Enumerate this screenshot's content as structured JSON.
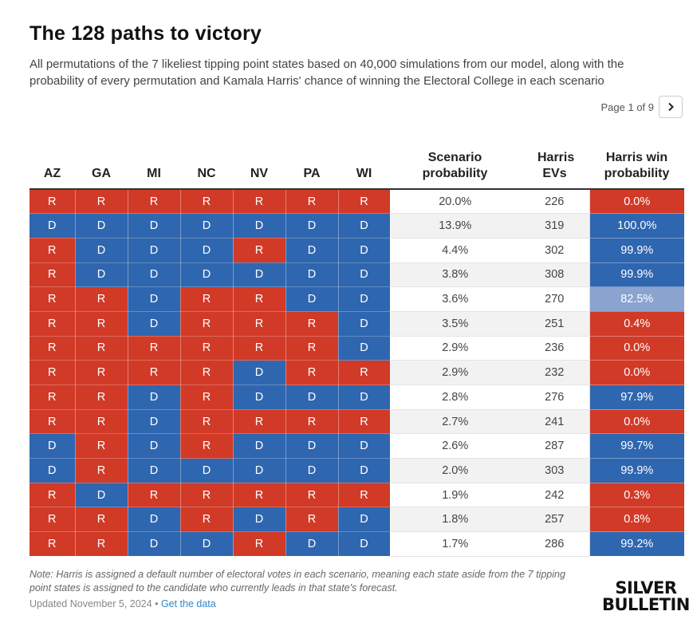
{
  "title": "The 128 paths to victory",
  "subtitle": "All permutations of the 7 likeliest tipping point states based on 40,000 simulations from our model, along with the probability of every permutation and Kamala Harris' chance of winning the Electoral College in each scenario",
  "pager": {
    "label": "Page 1 of 9",
    "next_icon": "chevron-right-icon"
  },
  "columns": {
    "states": [
      "AZ",
      "GA",
      "MI",
      "NC",
      "NV",
      "PA",
      "WI"
    ],
    "scenario_prob": "Scenario probability",
    "harris_evs": "Harris EVs",
    "win_prob": "Harris win probability"
  },
  "colors": {
    "R": "#d13a27",
    "D": "#2f66b0",
    "mid": "#8aa3cf"
  },
  "chart_data": {
    "type": "table",
    "title": "The 128 paths to victory",
    "columns": [
      "AZ",
      "GA",
      "MI",
      "NC",
      "NV",
      "PA",
      "WI",
      "Scenario probability",
      "Harris EVs",
      "Harris win probability"
    ],
    "rows": [
      {
        "states": [
          "R",
          "R",
          "R",
          "R",
          "R",
          "R",
          "R"
        ],
        "scenario": "20.0%",
        "evs": "226",
        "win": "0.0%",
        "win_value": 0.0
      },
      {
        "states": [
          "D",
          "D",
          "D",
          "D",
          "D",
          "D",
          "D"
        ],
        "scenario": "13.9%",
        "evs": "319",
        "win": "100.0%",
        "win_value": 100.0
      },
      {
        "states": [
          "R",
          "D",
          "D",
          "D",
          "R",
          "D",
          "D"
        ],
        "scenario": "4.4%",
        "evs": "302",
        "win": "99.9%",
        "win_value": 99.9
      },
      {
        "states": [
          "R",
          "D",
          "D",
          "D",
          "D",
          "D",
          "D"
        ],
        "scenario": "3.8%",
        "evs": "308",
        "win": "99.9%",
        "win_value": 99.9
      },
      {
        "states": [
          "R",
          "R",
          "D",
          "R",
          "R",
          "D",
          "D"
        ],
        "scenario": "3.6%",
        "evs": "270",
        "win": "82.5%",
        "win_value": 82.5
      },
      {
        "states": [
          "R",
          "R",
          "D",
          "R",
          "R",
          "R",
          "D"
        ],
        "scenario": "3.5%",
        "evs": "251",
        "win": "0.4%",
        "win_value": 0.4
      },
      {
        "states": [
          "R",
          "R",
          "R",
          "R",
          "R",
          "R",
          "D"
        ],
        "scenario": "2.9%",
        "evs": "236",
        "win": "0.0%",
        "win_value": 0.0
      },
      {
        "states": [
          "R",
          "R",
          "R",
          "R",
          "D",
          "R",
          "R"
        ],
        "scenario": "2.9%",
        "evs": "232",
        "win": "0.0%",
        "win_value": 0.0
      },
      {
        "states": [
          "R",
          "R",
          "D",
          "R",
          "D",
          "D",
          "D"
        ],
        "scenario": "2.8%",
        "evs": "276",
        "win": "97.9%",
        "win_value": 97.9
      },
      {
        "states": [
          "R",
          "R",
          "D",
          "R",
          "R",
          "R",
          "R"
        ],
        "scenario": "2.7%",
        "evs": "241",
        "win": "0.0%",
        "win_value": 0.0
      },
      {
        "states": [
          "D",
          "R",
          "D",
          "R",
          "D",
          "D",
          "D"
        ],
        "scenario": "2.6%",
        "evs": "287",
        "win": "99.7%",
        "win_value": 99.7
      },
      {
        "states": [
          "D",
          "R",
          "D",
          "D",
          "D",
          "D",
          "D"
        ],
        "scenario": "2.0%",
        "evs": "303",
        "win": "99.9%",
        "win_value": 99.9
      },
      {
        "states": [
          "R",
          "D",
          "R",
          "R",
          "R",
          "R",
          "R"
        ],
        "scenario": "1.9%",
        "evs": "242",
        "win": "0.3%",
        "win_value": 0.3
      },
      {
        "states": [
          "R",
          "R",
          "D",
          "R",
          "D",
          "R",
          "D"
        ],
        "scenario": "1.8%",
        "evs": "257",
        "win": "0.8%",
        "win_value": 0.8
      },
      {
        "states": [
          "R",
          "R",
          "D",
          "D",
          "R",
          "D",
          "D"
        ],
        "scenario": "1.7%",
        "evs": "286",
        "win": "99.2%",
        "win_value": 99.2
      }
    ]
  },
  "footer": {
    "note": "Note: Harris is assigned a default number of electoral votes in each scenario, meaning each state aside from the 7 tipping point states is assigned to the candidate who currently leads in that state's forecast.",
    "updated": "Updated November 5, 2024",
    "separator": "•",
    "data_link": "Get the data",
    "logo_line1": "SILVER",
    "logo_line2": "BULLETIN"
  }
}
